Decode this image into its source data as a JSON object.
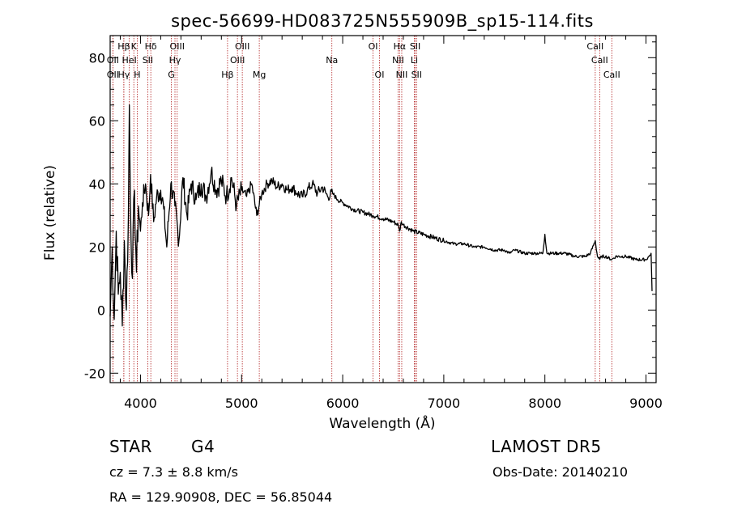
{
  "chart_data": {
    "type": "line",
    "title": "spec-56699-HD083725N555909B_sp15-114.fits",
    "xlabel": "Wavelength (Å)",
    "ylabel": "Flux (relative)",
    "xlim": [
      3700,
      9100
    ],
    "ylim": [
      -23,
      87
    ],
    "xticks": [
      4000,
      5000,
      6000,
      7000,
      8000,
      9000
    ],
    "yticks": [
      -20,
      0,
      20,
      40,
      60,
      80
    ],
    "grid": false,
    "series": [
      {
        "color": "#000000",
        "x": [
          3700,
          3720,
          3740,
          3760,
          3780,
          3800,
          3820,
          3840,
          3860,
          3880,
          3890,
          3900,
          3920,
          3940,
          3960,
          3980,
          4000,
          4020,
          4050,
          4080,
          4100,
          4130,
          4160,
          4200,
          4230,
          4260,
          4300,
          4340,
          4380,
          4420,
          4460,
          4500,
          4550,
          4600,
          4650,
          4700,
          4750,
          4800,
          4850,
          4900,
          4950,
          5000,
          5050,
          5100,
          5150,
          5200,
          5250,
          5300,
          5350,
          5400,
          5450,
          5500,
          5550,
          5600,
          5650,
          5700,
          5750,
          5800,
          5850,
          5900,
          5950,
          6000,
          6100,
          6200,
          6300,
          6400,
          6500,
          6550,
          6563,
          6580,
          6600,
          6700,
          6800,
          6900,
          7000,
          7100,
          7200,
          7300,
          7400,
          7500,
          7600,
          7650,
          7700,
          7800,
          7900,
          7980,
          8000,
          8020,
          8100,
          8200,
          8300,
          8400,
          8450,
          8498,
          8520,
          8542,
          8560,
          8600,
          8662,
          8700,
          8800,
          8900,
          9000,
          9030,
          9050,
          9060
        ],
        "y": [
          -2,
          20,
          -3,
          25,
          5,
          12,
          -5,
          22,
          0,
          30,
          65,
          35,
          10,
          38,
          12,
          33,
          25,
          34,
          40,
          30,
          43,
          28,
          36,
          38,
          32,
          20,
          40,
          33,
          22,
          42,
          30,
          40,
          35,
          40,
          36,
          44,
          38,
          41,
          36,
          42,
          33,
          38,
          36,
          40,
          30,
          37,
          40,
          41,
          39,
          40,
          38,
          39,
          37,
          36,
          38,
          40,
          37,
          39,
          36,
          37,
          35,
          34,
          32,
          31,
          30,
          29,
          28,
          27,
          25,
          28,
          27,
          25,
          24,
          23,
          22,
          21,
          21,
          20,
          20,
          19,
          19,
          18,
          19,
          18,
          18,
          18,
          24,
          18,
          18,
          18,
          17,
          17,
          18,
          22,
          17,
          16,
          17,
          17,
          16,
          17,
          17,
          16,
          16,
          17,
          18,
          6
        ]
      }
    ],
    "spectral_lines": [
      {
        "label": "Hβ",
        "x": 3835,
        "row": 1
      },
      {
        "label": "OII",
        "x": 3727,
        "row": 2
      },
      {
        "label": "HeI",
        "x": 3889,
        "row": 2
      },
      {
        "label": "OII",
        "x": 3727,
        "row": 3
      },
      {
        "label": "Hγ",
        "x": 3835,
        "row": 3
      },
      {
        "label": "K",
        "x": 3934,
        "row": 1
      },
      {
        "label": "H",
        "x": 3968,
        "row": 3
      },
      {
        "label": "Hδ",
        "x": 4102,
        "row": 1
      },
      {
        "label": "SII",
        "x": 4072,
        "row": 2
      },
      {
        "label": "OIII",
        "x": 4363,
        "row": 1
      },
      {
        "label": "Hγ",
        "x": 4341,
        "row": 2
      },
      {
        "label": "G",
        "x": 4305,
        "row": 3
      },
      {
        "label": "Hβ",
        "x": 4861,
        "row": 3
      },
      {
        "label": "OIII",
        "x": 5007,
        "row": 1
      },
      {
        "label": "OIII",
        "x": 4959,
        "row": 2
      },
      {
        "label": "Mg",
        "x": 5175,
        "row": 3
      },
      {
        "label": "Na",
        "x": 5893,
        "row": 2
      },
      {
        "label": "OI",
        "x": 6300,
        "row": 1
      },
      {
        "label": "OI",
        "x": 6364,
        "row": 3
      },
      {
        "label": "Hα",
        "x": 6563,
        "row": 1
      },
      {
        "label": "NII",
        "x": 6548,
        "row": 2
      },
      {
        "label": "NII",
        "x": 6584,
        "row": 3
      },
      {
        "label": "SII",
        "x": 6717,
        "row": 1
      },
      {
        "label": "Li",
        "x": 6708,
        "row": 2
      },
      {
        "label": "SII",
        "x": 6731,
        "row": 3
      },
      {
        "label": "CaII",
        "x": 8498,
        "row": 1
      },
      {
        "label": "CaII",
        "x": 8542,
        "row": 2
      },
      {
        "label": "CaII",
        "x": 8662,
        "row": 3
      }
    ],
    "line_marker_color": "#b22222"
  },
  "info": {
    "object_class": "STAR",
    "subclass": "G4",
    "survey": "LAMOST DR5",
    "redshift": "cz = 7.3 ± 8.8 km/s",
    "obs_date": "Obs-Date: 20140210",
    "coords": "RA = 129.90908, DEC =  56.85044"
  }
}
